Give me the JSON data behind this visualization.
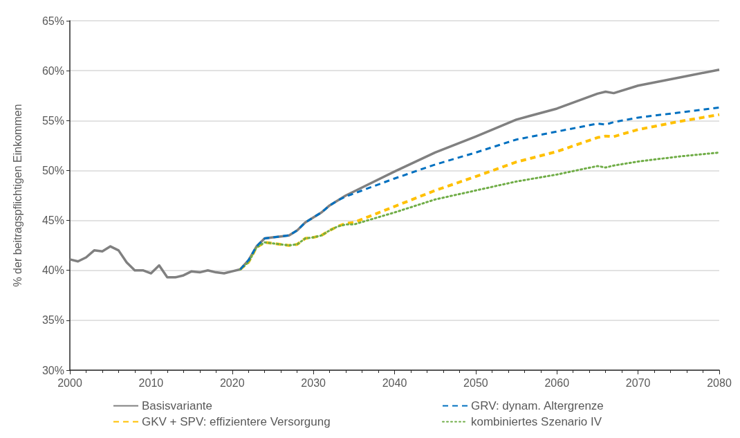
{
  "chart_data": {
    "type": "line",
    "ylabel": "% der beitragspflichtigen Einkommen",
    "xlim": [
      2000,
      2080
    ],
    "xticks": [
      2000,
      2010,
      2020,
      2030,
      2040,
      2050,
      2060,
      2070,
      2080
    ],
    "ylim": [
      30,
      65
    ],
    "yticks": [
      {
        "value": 30,
        "label": "30%"
      },
      {
        "value": 35,
        "label": "35%"
      },
      {
        "value": 40,
        "label": "40%"
      },
      {
        "value": 45,
        "label": "45%"
      },
      {
        "value": 50,
        "label": "50%"
      },
      {
        "value": 55,
        "label": "55%"
      },
      {
        "value": 60,
        "label": "60%"
      },
      {
        "value": 65,
        "label": "65%"
      }
    ],
    "grid": "y",
    "legend": "bottom",
    "marker": "none",
    "series": [
      {
        "name": "Basisvariante",
        "color": "#808080",
        "line_style": "solid",
        "x": [
          2000,
          2001,
          2002,
          2003,
          2004,
          2005,
          2006,
          2007,
          2008,
          2009,
          2010,
          2011,
          2012,
          2013,
          2014,
          2015,
          2016,
          2017,
          2018,
          2019,
          2020,
          2021,
          2022,
          2023,
          2024,
          2025,
          2026,
          2027,
          2028,
          2029,
          2030,
          2031,
          2032,
          2033,
          2034,
          2035,
          2040,
          2045,
          2050,
          2055,
          2060,
          2065,
          2066,
          2067,
          2070,
          2075,
          2080
        ],
        "values": [
          41.1,
          40.9,
          41.3,
          42.0,
          41.9,
          42.4,
          42.0,
          40.8,
          40.0,
          40.0,
          39.7,
          40.5,
          39.3,
          39.3,
          39.5,
          39.9,
          39.8,
          40.0,
          39.8,
          39.7,
          39.9,
          40.1,
          41.0,
          42.4,
          43.2,
          43.3,
          43.4,
          43.5,
          44.0,
          44.8,
          45.3,
          45.8,
          46.5,
          47.0,
          47.5,
          47.9,
          49.9,
          51.8,
          53.4,
          55.1,
          56.2,
          57.7,
          57.9,
          57.75,
          58.5,
          59.3,
          60.1
        ]
      },
      {
        "name": "GRV: dynam. Altergrenze",
        "color": "#0070c0",
        "line_style": "dashed",
        "x": [
          2021,
          2022,
          2023,
          2024,
          2025,
          2026,
          2027,
          2028,
          2029,
          2030,
          2031,
          2032,
          2033,
          2034,
          2035,
          2040,
          2045,
          2050,
          2055,
          2060,
          2065,
          2066,
          2067,
          2070,
          2075,
          2080
        ],
        "values": [
          40.1,
          41.0,
          42.4,
          43.2,
          43.3,
          43.4,
          43.5,
          44.0,
          44.8,
          45.3,
          45.8,
          46.5,
          47.0,
          47.4,
          47.7,
          49.2,
          50.6,
          51.8,
          53.1,
          53.9,
          54.7,
          54.6,
          54.85,
          55.3,
          55.8,
          56.3
        ]
      },
      {
        "name": "GKV + SPV: effizientere Versorgung",
        "color": "#ffc000",
        "line_style": "dashed",
        "x": [
          2021,
          2022,
          2023,
          2024,
          2025,
          2026,
          2027,
          2028,
          2029,
          2030,
          2031,
          2032,
          2033,
          2034,
          2035,
          2040,
          2045,
          2050,
          2055,
          2060,
          2065,
          2066,
          2067,
          2070,
          2075,
          2080
        ],
        "values": [
          40.1,
          40.8,
          42.3,
          42.8,
          42.7,
          42.6,
          42.5,
          42.6,
          43.2,
          43.3,
          43.5,
          44.0,
          44.4,
          44.7,
          44.8,
          46.4,
          48.0,
          49.4,
          50.85,
          51.9,
          53.3,
          53.45,
          53.4,
          54.1,
          54.9,
          55.6
        ]
      },
      {
        "name": "kombiniertes Szenario IV",
        "color": "#70ad47",
        "line_style": "dotted",
        "x": [
          2021,
          2022,
          2023,
          2024,
          2025,
          2026,
          2027,
          2028,
          2029,
          2030,
          2031,
          2032,
          2033,
          2034,
          2035,
          2040,
          2045,
          2050,
          2055,
          2060,
          2065,
          2066,
          2067,
          2070,
          2075,
          2080
        ],
        "values": [
          40.1,
          40.8,
          42.3,
          42.8,
          42.7,
          42.6,
          42.5,
          42.6,
          43.2,
          43.3,
          43.5,
          44.0,
          44.4,
          44.6,
          44.6,
          45.8,
          47.1,
          48.0,
          48.9,
          49.6,
          50.45,
          50.3,
          50.5,
          50.9,
          51.4,
          51.8
        ]
      }
    ]
  }
}
